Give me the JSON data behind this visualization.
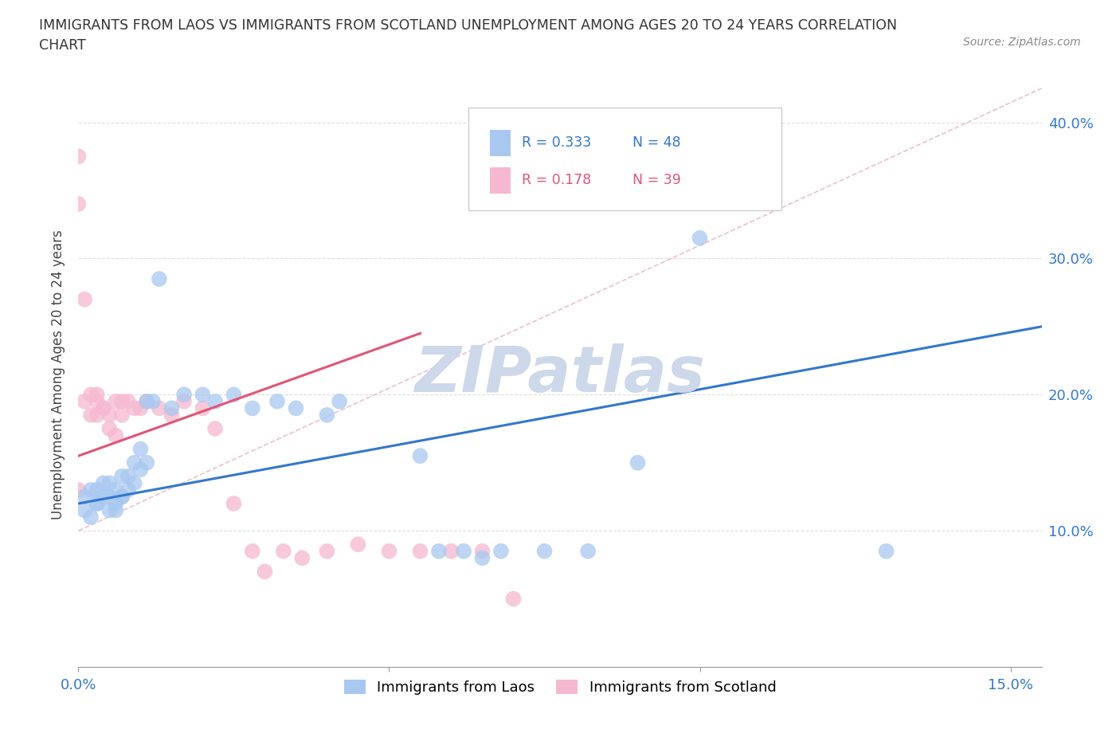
{
  "title_line1": "IMMIGRANTS FROM LAOS VS IMMIGRANTS FROM SCOTLAND UNEMPLOYMENT AMONG AGES 20 TO 24 YEARS CORRELATION",
  "title_line2": "CHART",
  "source": "Source: ZipAtlas.com",
  "ylabel": "Unemployment Among Ages 20 to 24 years",
  "xlim": [
    0.0,
    0.155
  ],
  "ylim": [
    0.0,
    0.43
  ],
  "color_laos": "#a8c8f0",
  "color_scotland": "#f5b8d0",
  "trendline_laos_color": "#3377cc",
  "trendline_scotland_color": "#e05575",
  "watermark": "ZIPatlas",
  "watermark_color": "#cdd8ea",
  "background_color": "#ffffff",
  "grid_color": "#dddddd",
  "legend_R1": "0.333",
  "legend_N1": "48",
  "legend_R2": "0.178",
  "legend_N2": "39",
  "laos_x": [
    0.001,
    0.001,
    0.002,
    0.002,
    0.003,
    0.003,
    0.003,
    0.004,
    0.004,
    0.005,
    0.005,
    0.005,
    0.006,
    0.006,
    0.006,
    0.007,
    0.007,
    0.007,
    0.008,
    0.008,
    0.009,
    0.009,
    0.01,
    0.01,
    0.011,
    0.011,
    0.012,
    0.013,
    0.015,
    0.017,
    0.02,
    0.022,
    0.025,
    0.028,
    0.032,
    0.035,
    0.04,
    0.042,
    0.055,
    0.058,
    0.062,
    0.065,
    0.068,
    0.075,
    0.082,
    0.09,
    0.1,
    0.13
  ],
  "laos_y": [
    0.115,
    0.125,
    0.11,
    0.13,
    0.12,
    0.13,
    0.12,
    0.125,
    0.135,
    0.115,
    0.125,
    0.135,
    0.12,
    0.13,
    0.115,
    0.125,
    0.14,
    0.125,
    0.13,
    0.14,
    0.135,
    0.15,
    0.145,
    0.16,
    0.15,
    0.195,
    0.195,
    0.285,
    0.19,
    0.2,
    0.2,
    0.195,
    0.2,
    0.19,
    0.195,
    0.19,
    0.185,
    0.195,
    0.155,
    0.085,
    0.085,
    0.08,
    0.085,
    0.085,
    0.085,
    0.15,
    0.315,
    0.085
  ],
  "scotland_x": [
    0.0,
    0.0,
    0.0,
    0.001,
    0.001,
    0.002,
    0.002,
    0.003,
    0.003,
    0.003,
    0.004,
    0.004,
    0.005,
    0.005,
    0.006,
    0.006,
    0.007,
    0.007,
    0.008,
    0.009,
    0.01,
    0.011,
    0.013,
    0.015,
    0.017,
    0.02,
    0.022,
    0.025,
    0.028,
    0.03,
    0.033,
    0.036,
    0.04,
    0.045,
    0.05,
    0.055,
    0.06,
    0.065,
    0.07
  ],
  "scotland_y": [
    0.375,
    0.34,
    0.13,
    0.27,
    0.195,
    0.2,
    0.185,
    0.185,
    0.195,
    0.2,
    0.19,
    0.19,
    0.185,
    0.175,
    0.17,
    0.195,
    0.185,
    0.195,
    0.195,
    0.19,
    0.19,
    0.195,
    0.19,
    0.185,
    0.195,
    0.19,
    0.175,
    0.12,
    0.085,
    0.07,
    0.085,
    0.08,
    0.085,
    0.09,
    0.085,
    0.085,
    0.085,
    0.085,
    0.05
  ]
}
